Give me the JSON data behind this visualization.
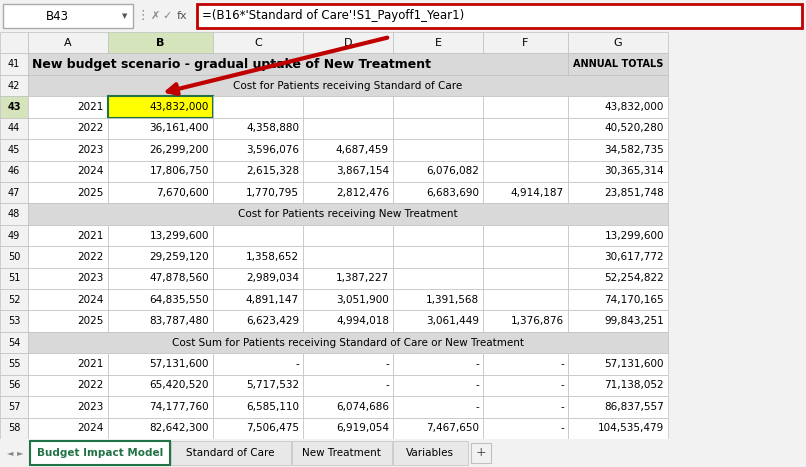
{
  "formula_bar_cell": "B43",
  "formula_bar_text": "=(B16*'Standard of Care'!S1_Payoff1_Year1)",
  "col_headers": [
    "A",
    "B",
    "C",
    "D",
    "E",
    "F",
    "G"
  ],
  "title_text": "New budget scenario - gradual uptake of New Treatment",
  "annual_totals_text": "ANNUAL TOTALS",
  "section_headers": [
    {
      "row": 42,
      "text": "Cost for Patients receiving Standard of Care"
    },
    {
      "row": 48,
      "text": "Cost for Patients receiving New Treatment"
    },
    {
      "row": 54,
      "text": "Cost Sum for Patients receiving Standard of Care or New Treatment"
    }
  ],
  "data_rows": [
    {
      "row": 43,
      "year": "2021",
      "B": "43,832,000",
      "C": "",
      "D": "",
      "E": "",
      "F": "",
      "G": "43,832,000",
      "B_highlight": true
    },
    {
      "row": 44,
      "year": "2022",
      "B": "36,161,400",
      "C": "4,358,880",
      "D": "",
      "E": "",
      "F": "",
      "G": "40,520,280"
    },
    {
      "row": 45,
      "year": "2023",
      "B": "26,299,200",
      "C": "3,596,076",
      "D": "4,687,459",
      "E": "",
      "F": "",
      "G": "34,582,735"
    },
    {
      "row": 46,
      "year": "2024",
      "B": "17,806,750",
      "C": "2,615,328",
      "D": "3,867,154",
      "E": "6,076,082",
      "F": "",
      "G": "30,365,314"
    },
    {
      "row": 47,
      "year": "2025",
      "B": "7,670,600",
      "C": "1,770,795",
      "D": "2,812,476",
      "E": "6,683,690",
      "F": "4,914,187",
      "G": "23,851,748"
    },
    {
      "row": 49,
      "year": "2021",
      "B": "13,299,600",
      "C": "",
      "D": "",
      "E": "",
      "F": "",
      "G": "13,299,600"
    },
    {
      "row": 50,
      "year": "2022",
      "B": "29,259,120",
      "C": "1,358,652",
      "D": "",
      "E": "",
      "F": "",
      "G": "30,617,772"
    },
    {
      "row": 51,
      "year": "2023",
      "B": "47,878,560",
      "C": "2,989,034",
      "D": "1,387,227",
      "E": "",
      "F": "",
      "G": "52,254,822"
    },
    {
      "row": 52,
      "year": "2024",
      "B": "64,835,550",
      "C": "4,891,147",
      "D": "3,051,900",
      "E": "1,391,568",
      "F": "",
      "G": "74,170,165"
    },
    {
      "row": 53,
      "year": "2025",
      "B": "83,787,480",
      "C": "6,623,429",
      "D": "4,994,018",
      "E": "3,061,449",
      "F": "1,376,876",
      "G": "99,843,251"
    },
    {
      "row": 55,
      "year": "2021",
      "B": "57,131,600",
      "C": "-",
      "D": "-",
      "E": "-",
      "F": "-",
      "G": "57,131,600"
    },
    {
      "row": 56,
      "year": "2022",
      "B": "65,420,520",
      "C": "5,717,532",
      "D": "-",
      "E": "-",
      "F": "-",
      "G": "71,138,052"
    },
    {
      "row": 57,
      "year": "2023",
      "B": "74,177,760",
      "C": "6,585,110",
      "D": "6,074,686",
      "E": "-",
      "F": "-",
      "G": "86,837,557"
    },
    {
      "row": 58,
      "year": "2024",
      "B": "82,642,300",
      "C": "7,506,475",
      "D": "6,919,054",
      "E": "7,467,650",
      "F": "-",
      "G": "104,535,479"
    }
  ],
  "tabs": [
    "Budget Impact Model",
    "Standard of Care",
    "New Treatment",
    "Variables"
  ],
  "active_tab": "Budget Impact Model",
  "colors": {
    "grid": "#c0c0c0",
    "bg_white": "#ffffff",
    "bg_section": "#d9d9d9",
    "cell_highlight": "#ffff00",
    "text_black": "#000000",
    "tab_active_text": "#217346",
    "tab_active_bg": "#ffffff",
    "tab_inactive_bg": "#e8e8e8",
    "formula_border": "#c00000",
    "col_header_selected": "#d6e4bc",
    "col_header_normal": "#f2f2f2",
    "row_header_normal": "#f2f2f2",
    "row_header_selected": "#d6e4bc",
    "arrow_color": "#c00000",
    "topbar_bg": "#f2f2f2",
    "green_border": "#217346"
  },
  "figsize": [
    8.06,
    4.67
  ],
  "dpi": 100
}
